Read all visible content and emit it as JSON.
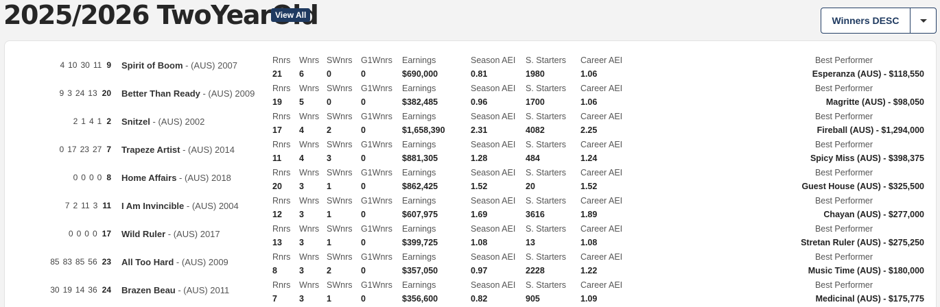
{
  "header": {
    "title": "2025/2026 TwoYearOld",
    "view_all": "View All",
    "sort_label": "Winners DESC"
  },
  "labels": {
    "rnrs": "Rnrs",
    "wnrs": "Wnrs",
    "swnrs": "SWnrs",
    "g1wnrs": "G1Wnrs",
    "earnings": "Earnings",
    "season_aei": "Season AEI",
    "s_starters": "S. Starters",
    "career_aei": "Career AEI",
    "best_performer": "Best Performer"
  },
  "rows": [
    {
      "n": [
        "4",
        "10",
        "30",
        "11"
      ],
      "total": "9",
      "sire": "Spirit of Boom",
      "info": " - (AUS) 2007",
      "rnrs": "21",
      "wnrs": "6",
      "swnrs": "0",
      "g1": "0",
      "earn": "$690,000",
      "saei": "0.81",
      "sst": "1980",
      "caei": "1.06",
      "best": "Esperanza (AUS) - $118,550"
    },
    {
      "n": [
        "9",
        "3",
        "24",
        "13"
      ],
      "total": "20",
      "sire": "Better Than Ready",
      "info": " - (AUS) 2009",
      "rnrs": "19",
      "wnrs": "5",
      "swnrs": "0",
      "g1": "0",
      "earn": "$382,485",
      "saei": "0.96",
      "sst": "1700",
      "caei": "1.06",
      "best": "Magritte (AUS) - $98,050"
    },
    {
      "n": [
        "2",
        "1",
        "4",
        "1"
      ],
      "total": "2",
      "sire": "Snitzel",
      "info": " - (AUS) 2002",
      "rnrs": "17",
      "wnrs": "4",
      "swnrs": "2",
      "g1": "0",
      "earn": "$1,658,390",
      "saei": "2.31",
      "sst": "4082",
      "caei": "2.25",
      "best": "Fireball (AUS) - $1,294,000"
    },
    {
      "n": [
        "0",
        "17",
        "23",
        "27"
      ],
      "total": "7",
      "sire": "Trapeze Artist",
      "info": " - (AUS) 2014",
      "rnrs": "11",
      "wnrs": "4",
      "swnrs": "3",
      "g1": "0",
      "earn": "$881,305",
      "saei": "1.28",
      "sst": "484",
      "caei": "1.24",
      "best": "Spicy Miss (AUS) - $398,375"
    },
    {
      "n": [
        "0",
        "0",
        "0",
        "0"
      ],
      "total": "8",
      "sire": "Home Affairs",
      "info": " - (AUS) 2018",
      "rnrs": "20",
      "wnrs": "3",
      "swnrs": "1",
      "g1": "0",
      "earn": "$862,425",
      "saei": "1.52",
      "sst": "20",
      "caei": "1.52",
      "best": "Guest House (AUS) - $325,500"
    },
    {
      "n": [
        "7",
        "2",
        "11",
        "3"
      ],
      "total": "11",
      "sire": "I Am Invincible",
      "info": " - (AUS) 2004",
      "rnrs": "12",
      "wnrs": "3",
      "swnrs": "1",
      "g1": "0",
      "earn": "$607,975",
      "saei": "1.69",
      "sst": "3616",
      "caei": "1.89",
      "best": "Chayan (AUS) - $277,000"
    },
    {
      "n": [
        "0",
        "0",
        "0",
        "0"
      ],
      "total": "17",
      "sire": "Wild Ruler",
      "info": " - (AUS) 2017",
      "rnrs": "13",
      "wnrs": "3",
      "swnrs": "1",
      "g1": "0",
      "earn": "$399,725",
      "saei": "1.08",
      "sst": "13",
      "caei": "1.08",
      "best": "Stretan Ruler (AUS) - $275,250"
    },
    {
      "n": [
        "85",
        "83",
        "85",
        "56"
      ],
      "total": "23",
      "sire": "All Too Hard",
      "info": " - (AUS) 2009",
      "rnrs": "8",
      "wnrs": "3",
      "swnrs": "2",
      "g1": "0",
      "earn": "$357,050",
      "saei": "0.97",
      "sst": "2228",
      "caei": "1.22",
      "best": "Music Time (AUS) - $180,000"
    },
    {
      "n": [
        "30",
        "19",
        "14",
        "36"
      ],
      "total": "24",
      "sire": "Brazen Beau",
      "info": " - (AUS) 2011",
      "rnrs": "7",
      "wnrs": "3",
      "swnrs": "1",
      "g1": "0",
      "earn": "$356,600",
      "saei": "0.82",
      "sst": "905",
      "caei": "1.09",
      "best": "Medicinal (AUS) - $175,775"
    }
  ]
}
